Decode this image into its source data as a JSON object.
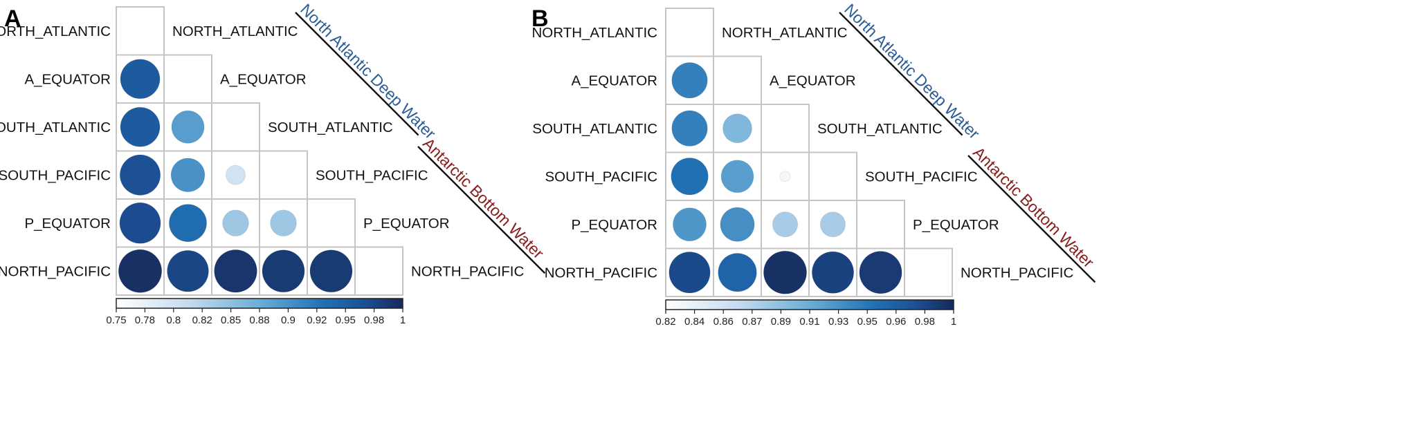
{
  "chart_data": [
    {
      "panel": "A",
      "type": "heatmap",
      "labels": [
        "NORTH_ATLANTIC",
        "A_EQUATOR",
        "SOUTH_ATLANTIC",
        "SOUTH_PACIFIC",
        "P_EQUATOR",
        "NORTH_PACIFIC"
      ],
      "matrix": [
        [
          null,
          null,
          null,
          null,
          null,
          null
        ],
        [
          0.955,
          null,
          null,
          null,
          null,
          null
        ],
        [
          0.955,
          0.89,
          null,
          null,
          null,
          null
        ],
        [
          0.965,
          0.9,
          0.8,
          null,
          null,
          null
        ],
        [
          0.97,
          0.935,
          0.84,
          0.84,
          null,
          null
        ],
        [
          0.995,
          0.975,
          0.99,
          0.985,
          0.985,
          null
        ]
      ],
      "groups": [
        {
          "name": "North Atlantic Deep Water",
          "color": "#2a5d95"
        },
        {
          "name": "Antarctic Bottom Water",
          "color": "#8a1c1c"
        }
      ],
      "colorbar": {
        "min": 0.75,
        "max": 1,
        "ticks": [
          "0.75",
          "0.78",
          "0.8",
          "0.82",
          "0.85",
          "0.88",
          "0.9",
          "0.92",
          "0.95",
          "0.98",
          "1"
        ]
      }
    },
    {
      "panel": "B",
      "type": "heatmap",
      "labels": [
        "NORTH_ATLANTIC",
        "A_EQUATOR",
        "SOUTH_ATLANTIC",
        "SOUTH_PACIFIC",
        "P_EQUATOR",
        "NORTH_PACIFIC"
      ],
      "matrix": [
        [
          null,
          null,
          null,
          null,
          null,
          null
        ],
        [
          0.94,
          null,
          null,
          null,
          null,
          null
        ],
        [
          0.94,
          0.9,
          null,
          null,
          null,
          null
        ],
        [
          0.95,
          0.92,
          0.83,
          null,
          null,
          null
        ],
        [
          0.925,
          0.93,
          0.88,
          0.88,
          null,
          null
        ],
        [
          0.98,
          0.96,
          0.995,
          0.985,
          0.99,
          null
        ]
      ],
      "groups": [
        {
          "name": "North Atlantic Deep Water",
          "color": "#2a5d95"
        },
        {
          "name": "Antarctic Bottom Water",
          "color": "#8a1c1c"
        }
      ],
      "colorbar": {
        "min": 0.82,
        "max": 1,
        "ticks": [
          "0.82",
          "0.84",
          "0.86",
          "0.87",
          "0.89",
          "0.91",
          "0.93",
          "0.95",
          "0.96",
          "0.98",
          "1"
        ]
      }
    }
  ]
}
